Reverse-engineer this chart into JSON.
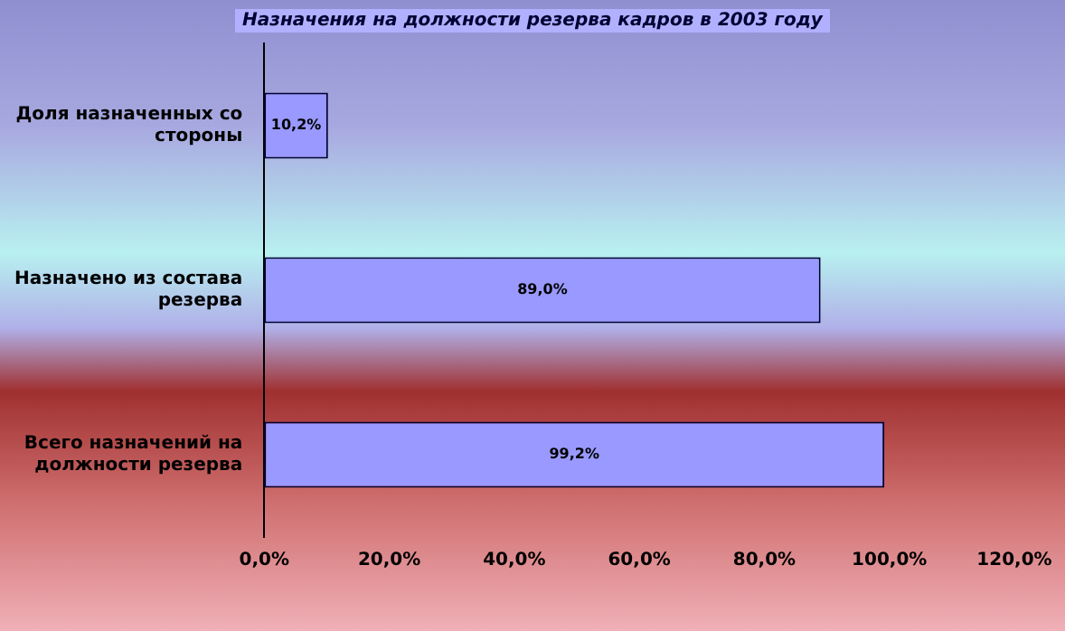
{
  "chart_data": {
    "type": "bar",
    "orientation": "horizontal",
    "title": "Назначения на должности резерва кадров в 2003 году",
    "categories": [
      "Доля назначенных со стороны",
      "Назначено из состава резерва",
      "Всего назначений на должности резерва"
    ],
    "values": [
      10.2,
      89.0,
      99.2
    ],
    "color": "#9999ff",
    "value_labels": [
      "10,2%",
      "89,0%",
      "99,2%"
    ],
    "xlim": [
      0,
      120
    ],
    "xticks": [
      {
        "value": 0,
        "label": "0,0%"
      },
      {
        "value": 20,
        "label": "20,0%"
      },
      {
        "value": 40,
        "label": "40,0%"
      },
      {
        "value": 60,
        "label": "60,0%"
      },
      {
        "value": 80,
        "label": "80,0%"
      },
      {
        "value": 100,
        "label": "100,0%"
      },
      {
        "value": 120,
        "label": "120,0%"
      }
    ],
    "grid": false,
    "legend": false
  }
}
